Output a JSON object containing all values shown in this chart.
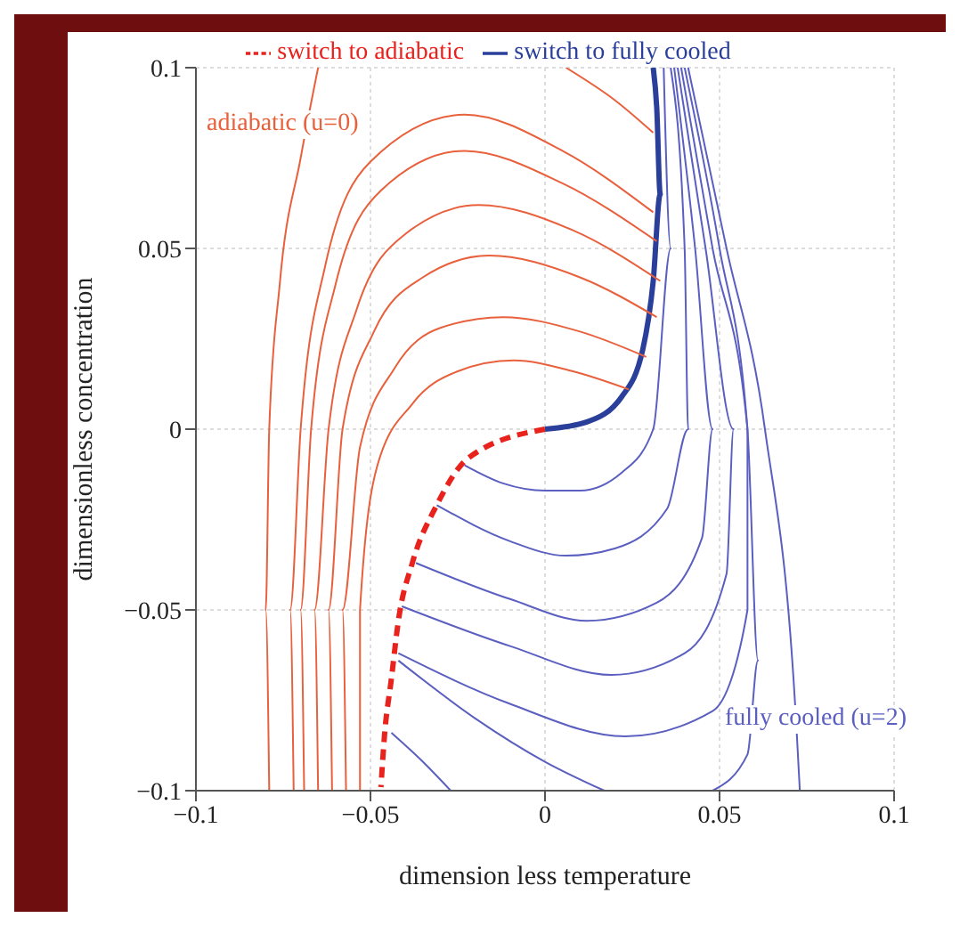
{
  "chart_data": {
    "type": "line",
    "xlabel": "dimension less temperature",
    "ylabel": "dimensionless concentration",
    "xlim": [
      -0.1,
      0.1
    ],
    "ylim": [
      -0.1,
      0.1
    ],
    "xticks": [
      -0.1,
      -0.05,
      0,
      0.05,
      0.1
    ],
    "yticks": [
      -0.1,
      -0.05,
      0,
      0.05,
      0.1
    ],
    "grid": true,
    "legend": "top",
    "marker": "none",
    "line_style": "solid",
    "annotations": [
      "adiabatic (u=0)",
      "fully cooled (u=2)"
    ],
    "series": [
      {
        "name": "switch to adiabatic",
        "color": "#e8221c",
        "line_style": "dashed",
        "x": [
          0,
          -0.022,
          -0.031,
          -0.038,
          -0.042,
          -0.044,
          -0.046,
          -0.047
        ],
        "values": [
          0,
          -0.008,
          -0.021,
          -0.037,
          -0.053,
          -0.069,
          -0.085,
          -0.099
        ]
      },
      {
        "name": "switch to fully cooled",
        "color": "#2a3f9a",
        "x": [
          0,
          0.012,
          0.022,
          0.028,
          0.031,
          0.033,
          0.032,
          0.031
        ],
        "values": [
          0,
          0.002,
          0.009,
          0.022,
          0.041,
          0.065,
          0.089,
          0.1
        ]
      },
      {
        "color": "#e8603c",
        "x": [
          -0.079,
          -0.08,
          -0.079,
          -0.076,
          -0.07,
          -0.065
        ],
        "values": [
          -0.1,
          -0.05,
          0,
          0.04,
          0.075,
          0.1
        ]
      },
      {
        "color": "#e8603c",
        "x": [
          -0.072,
          -0.073,
          -0.07,
          -0.063,
          -0.05,
          -0.023,
          0.005,
          0.031
        ],
        "values": [
          -0.1,
          -0.05,
          0,
          0.045,
          0.074,
          0.087,
          0.077,
          0.06
        ]
      },
      {
        "color": "#e8603c",
        "x": [
          -0.069,
          -0.07,
          -0.067,
          -0.06,
          -0.047,
          -0.023,
          0.005,
          0.032
        ],
        "values": [
          -0.1,
          -0.05,
          0,
          0.04,
          0.066,
          0.077,
          0.068,
          0.052
        ]
      },
      {
        "color": "#e8603c",
        "x": [
          -0.065,
          -0.066,
          -0.062,
          -0.054,
          -0.04,
          -0.019,
          0.008,
          0.033
        ],
        "values": [
          -0.1,
          -0.05,
          0,
          0.033,
          0.054,
          0.062,
          0.055,
          0.041
        ]
      },
      {
        "color": "#e8603c",
        "x": [
          -0.061,
          -0.062,
          -0.058,
          -0.049,
          -0.035,
          -0.016,
          0.01,
          0.032
        ],
        "values": [
          -0.1,
          -0.05,
          0,
          0.027,
          0.042,
          0.048,
          0.042,
          0.031
        ]
      },
      {
        "color": "#e8603c",
        "x": [
          -0.057,
          -0.058,
          -0.053,
          -0.043,
          -0.03,
          -0.012,
          0.01,
          0.029
        ],
        "values": [
          -0.1,
          -0.05,
          -0.005,
          0.017,
          0.028,
          0.031,
          0.027,
          0.02
        ]
      },
      {
        "color": "#e8603c",
        "x": [
          -0.053,
          -0.053,
          -0.048,
          -0.038,
          -0.025,
          -0.009,
          0.008,
          0.024
        ],
        "values": [
          -0.1,
          -0.05,
          -0.01,
          0.007,
          0.016,
          0.019,
          0.016,
          0.011
        ]
      },
      {
        "color": "#e8603c",
        "x": [
          0.006,
          0.02,
          0.031
        ],
        "values": [
          0.1,
          0.091,
          0.082
        ]
      },
      {
        "color": "#5a5fc0",
        "x": [
          0.034,
          0.036,
          0.031,
          0.022,
          0.01,
          0,
          -0.012,
          -0.023
        ],
        "values": [
          0.1,
          0.05,
          0,
          -0.012,
          -0.017,
          -0.017,
          -0.015,
          -0.01
        ]
      },
      {
        "color": "#5a5fc0",
        "x": [
          0.036,
          0.04,
          0.041,
          0.035,
          0.02,
          0.006,
          -0.01,
          -0.031
        ],
        "values": [
          0.1,
          0.05,
          0,
          -0.022,
          -0.033,
          -0.035,
          -0.031,
          -0.021
        ]
      },
      {
        "color": "#5a5fc0",
        "x": [
          0.037,
          0.043,
          0.048,
          0.045,
          0.032,
          0.012,
          -0.01,
          -0.037
        ],
        "values": [
          0.1,
          0.05,
          0,
          -0.03,
          -0.048,
          -0.053,
          -0.047,
          -0.037
        ]
      },
      {
        "color": "#5a5fc0",
        "x": [
          0.038,
          0.046,
          0.054,
          0.052,
          0.04,
          0.019,
          -0.01,
          -0.041
        ],
        "values": [
          0.1,
          0.05,
          0,
          -0.04,
          -0.062,
          -0.068,
          -0.06,
          -0.049
        ]
      },
      {
        "color": "#5a5fc0",
        "x": [
          0.039,
          0.048,
          0.058,
          0.058,
          0.048,
          0.023,
          -0.01,
          -0.042
        ],
        "values": [
          0.1,
          0.05,
          0,
          -0.05,
          -0.078,
          -0.085,
          -0.076,
          -0.062
        ]
      },
      {
        "color": "#5a5fc0",
        "x": [
          -0.044,
          -0.035,
          -0.027
        ],
        "values": [
          -0.084,
          -0.092,
          -0.1
        ]
      },
      {
        "color": "#5a5fc0",
        "x": [
          -0.042,
          -0.02,
          0,
          0.017
        ],
        "values": [
          -0.064,
          -0.08,
          -0.092,
          -0.1
        ]
      },
      {
        "color": "#5a5fc0",
        "x": [
          0.04,
          0.05,
          0.058,
          0.061,
          0.058,
          0.048
        ],
        "values": [
          0.1,
          0.05,
          0,
          -0.064,
          -0.09,
          -0.1
        ]
      },
      {
        "color": "#5a5fc0",
        "x": [
          0.041,
          0.052,
          0.063,
          0.072,
          0.073
        ],
        "values": [
          0.1,
          0.05,
          0,
          -0.082,
          -0.1
        ]
      }
    ]
  }
}
